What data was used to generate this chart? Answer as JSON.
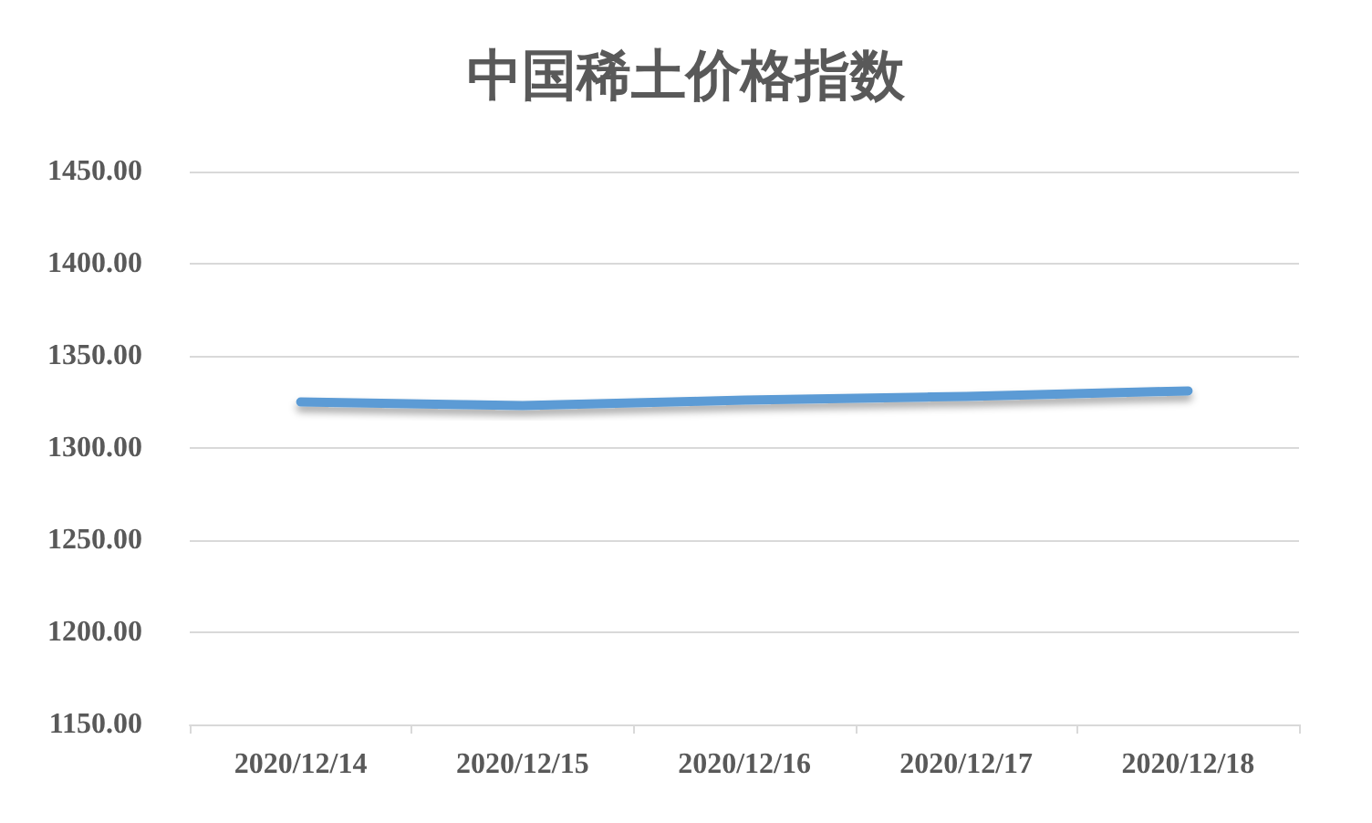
{
  "chart_data": {
    "type": "line",
    "title": "中国稀土价格指数",
    "categories": [
      "2020/12/14",
      "2020/12/15",
      "2020/12/16",
      "2020/12/17",
      "2020/12/18"
    ],
    "series": [
      {
        "color": "#5b9bd5",
        "values": [
          1325,
          1323,
          1326,
          1328,
          1331
        ]
      }
    ],
    "ylim": [
      1150,
      1450
    ],
    "yticks": [
      {
        "value": 1150,
        "label": "1150.00"
      },
      {
        "value": 1200,
        "label": "1200.00"
      },
      {
        "value": 1250,
        "label": "1250.00"
      },
      {
        "value": 1300,
        "label": "1300.00"
      },
      {
        "value": 1350,
        "label": "1350.00"
      },
      {
        "value": 1400,
        "label": "1400.00"
      },
      {
        "value": 1450,
        "label": "1450.00"
      }
    ],
    "grid": "y",
    "marker": "none",
    "line_style": "solid"
  }
}
